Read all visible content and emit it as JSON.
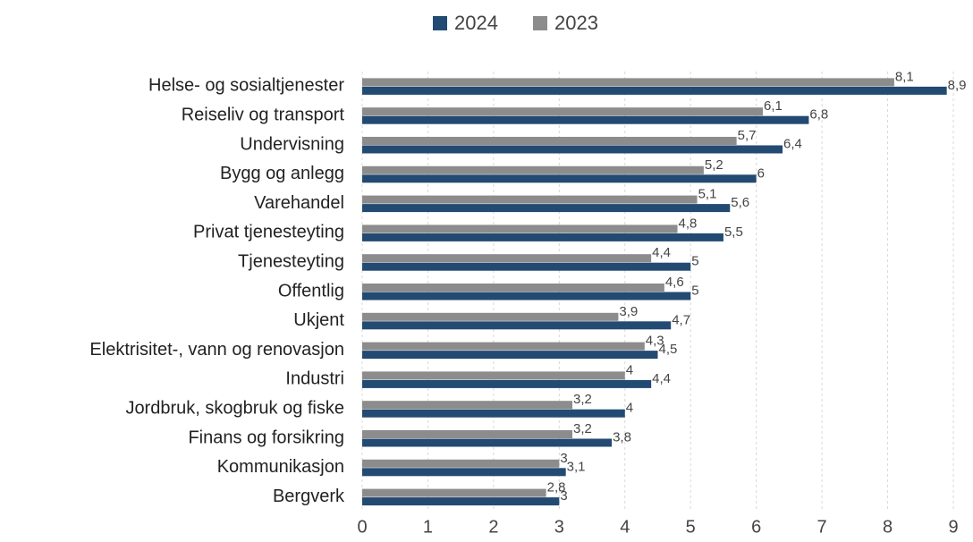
{
  "chart_data": {
    "type": "hbar",
    "categories": [
      "Helse- og sosialtjenester",
      "Reiseliv og transport",
      "Undervisning",
      "Bygg og anlegg",
      "Varehandel",
      "Privat tjenesteyting",
      "Tjenesteyting",
      "Offentlig",
      "Ukjent",
      "Elektrisitet-, vann og renovasjon",
      "Industri",
      "Jordbruk, skogbruk og fiske",
      "Finans og forsikring",
      "Kommunikasjon",
      "Bergverk"
    ],
    "series": [
      {
        "name": "2024",
        "color": "#234a72",
        "values": [
          8.9,
          6.8,
          6.4,
          6,
          5.6,
          5.5,
          5,
          5,
          4.7,
          4.5,
          4.4,
          4,
          3.8,
          3.1,
          3
        ],
        "value_labels": [
          "8,9",
          "6,8",
          "6,4",
          "6",
          "5,6",
          "5,5",
          "5",
          "5",
          "4,7",
          "4,5",
          "4,4",
          "4",
          "3,8",
          "3,1",
          "3"
        ]
      },
      {
        "name": "2023",
        "color": "#8c8c8c",
        "values": [
          8.1,
          6.1,
          5.7,
          5.2,
          5.1,
          4.8,
          4.4,
          4.6,
          3.9,
          4.3,
          4,
          3.2,
          3.2,
          3,
          2.8
        ],
        "value_labels": [
          "8,1",
          "6,1",
          "5,7",
          "5,2",
          "5,1",
          "4,8",
          "4,4",
          "4,6",
          "3,9",
          "4,3",
          "4",
          "3,2",
          "3,2",
          "3",
          "2,8"
        ]
      }
    ],
    "xlim": [
      0,
      9
    ],
    "xticks": [
      0,
      1,
      2,
      3,
      4,
      5,
      6,
      7,
      8,
      9
    ],
    "grid": true,
    "legend": "top"
  }
}
